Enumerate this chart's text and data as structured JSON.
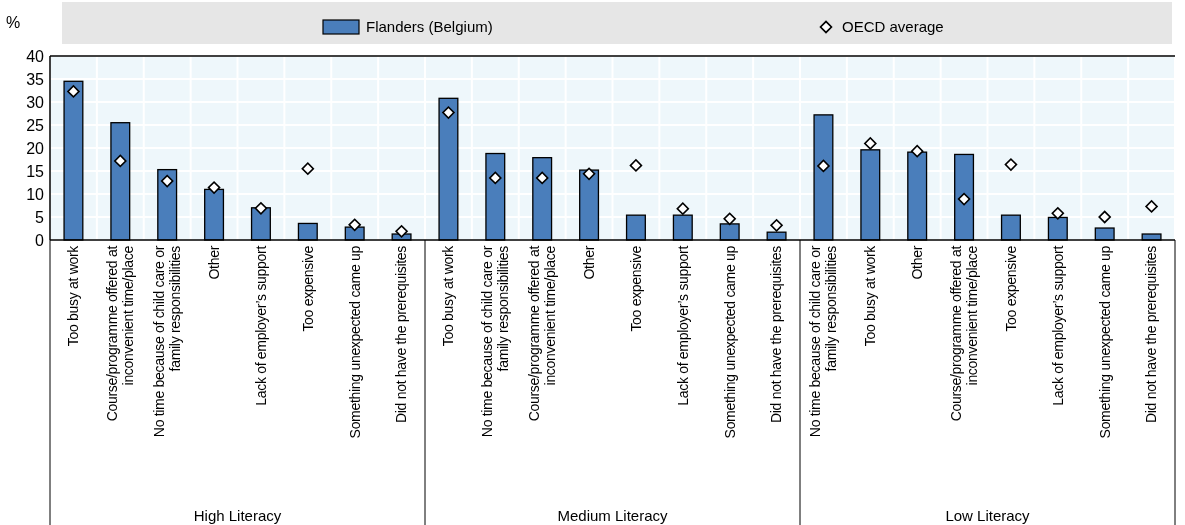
{
  "chart_data": {
    "type": "bar",
    "ylabel": "%",
    "ylim": [
      0,
      40
    ],
    "yticks": [
      0,
      5,
      10,
      15,
      20,
      25,
      30,
      35,
      40
    ],
    "grid": true,
    "legend": "top",
    "marker": "diamond",
    "categories": [
      "Too busy at work",
      "Course/programme offered at inconvenient time/place",
      "No time because of child care or family responsibilities",
      "Other",
      "Lack of employer’s support",
      "Too expensive",
      "Something unexpected came up",
      "Did not have the prerequisites",
      "Too busy at work",
      "No time because of child care or family responsibilities",
      "Course/programme offered at inconvenient time/place",
      "Other",
      "Too expensive",
      "Lack of employer’s support",
      "Something unexpected came up",
      "Did not have the prerequisites",
      "No time because of child care or family responsibilities",
      "Too busy at work",
      "Other",
      "Course/programme offered at inconvenient time/place",
      "Too expensive",
      "Lack of employer’s support",
      "Something unexpected came up",
      "Did not have the prerequisites"
    ],
    "series": [
      {
        "name": "Flanders (Belgium)",
        "color": "#4a7ebb",
        "values": [
          34.5,
          25.5,
          15.3,
          11,
          7,
          3.6,
          2.8,
          1.3,
          30.8,
          18.8,
          17.9,
          15.2,
          5.4,
          5.4,
          3.5,
          1.7,
          27.2,
          19.6,
          19.1,
          18.6,
          5.4,
          4.9,
          2.6,
          1.3
        ]
      },
      {
        "name": "OECD average",
        "type": "scatter",
        "color": "#ffffff",
        "values": [
          32.3,
          17.2,
          12.8,
          11.4,
          6.9,
          15.5,
          3.3,
          1.9,
          27.7,
          13.5,
          13.5,
          14.4,
          16.2,
          6.8,
          4.6,
          3.2,
          16.1,
          21,
          19.3,
          8.9,
          16.4,
          5.8,
          5,
          7.3
        ]
      }
    ],
    "annotations": [
      "High Literacy",
      "Medium Literacy",
      "Low Literacy"
    ]
  }
}
